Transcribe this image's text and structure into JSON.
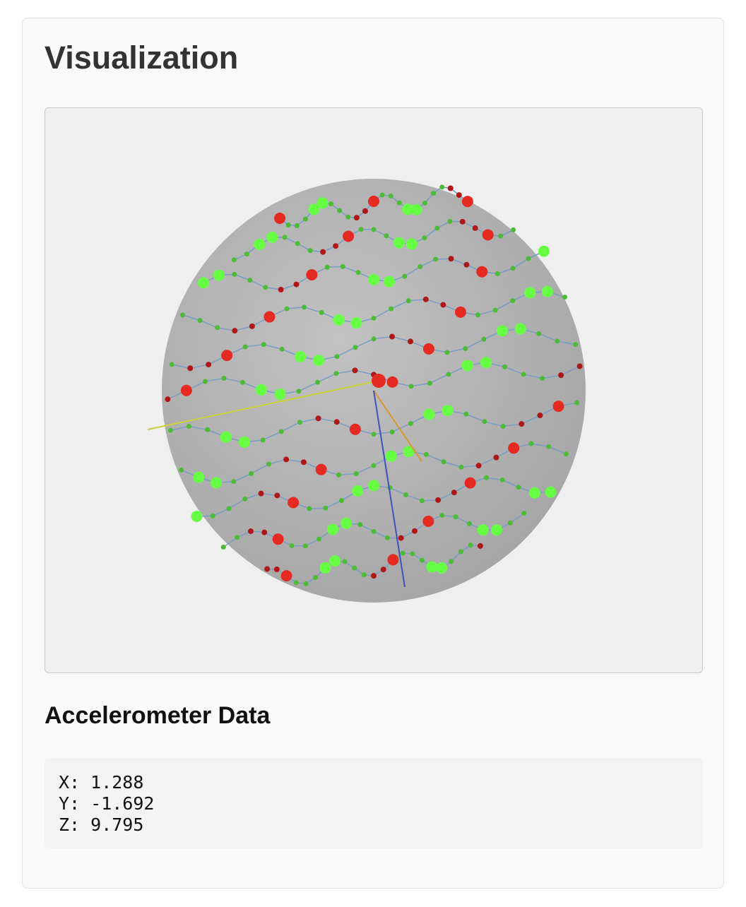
{
  "header": {
    "title": "Visualization"
  },
  "section": {
    "title": "Accelerometer Data",
    "readings": [
      "X: 1.288",
      "Y: -1.692",
      "Z: 9.795"
    ]
  }
}
